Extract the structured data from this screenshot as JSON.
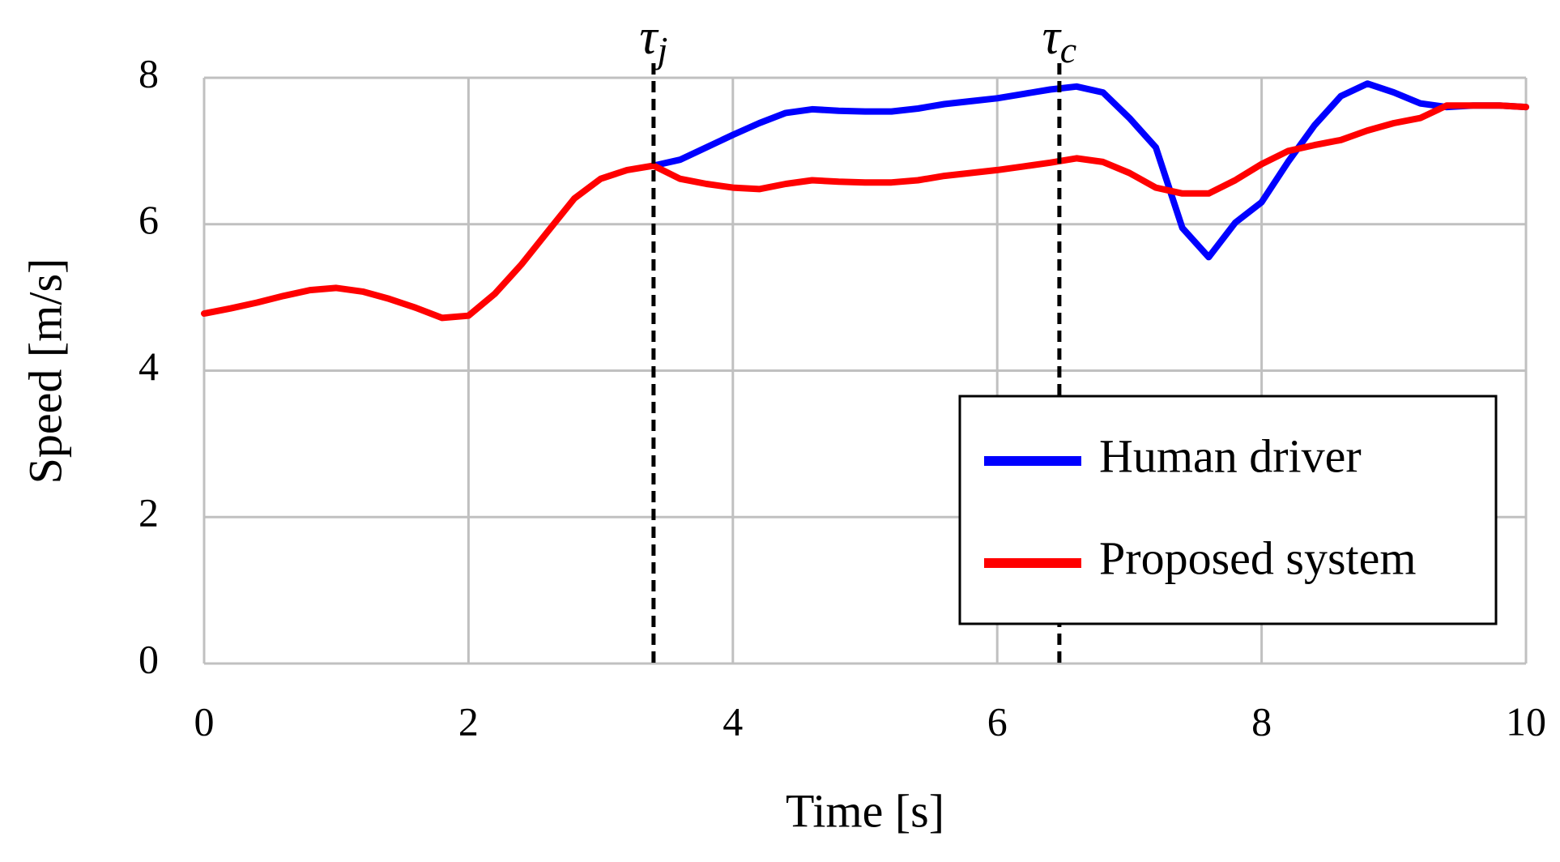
{
  "chart_data": {
    "type": "line",
    "x_label": "Time [s]",
    "y_label": "Speed [m/s]",
    "x": [
      0,
      0.2,
      0.4,
      0.6,
      0.8,
      1.0,
      1.2,
      1.4,
      1.6,
      1.8,
      2.0,
      2.2,
      2.4,
      2.6,
      2.8,
      3.0,
      3.2,
      3.4,
      3.6,
      3.8,
      4.0,
      4.2,
      4.4,
      4.6,
      4.8,
      5.0,
      5.2,
      5.4,
      5.6,
      5.8,
      6.0,
      6.2,
      6.4,
      6.6,
      6.8,
      7.0,
      7.2,
      7.4,
      7.6,
      7.8,
      8.0,
      8.2,
      8.4,
      8.6,
      8.8,
      9.0,
      9.2,
      9.4,
      9.6,
      9.8,
      10
    ],
    "series": [
      {
        "name": "Human driver",
        "color": "#0000ff",
        "values": [
          null,
          null,
          null,
          null,
          null,
          null,
          null,
          null,
          null,
          null,
          null,
          null,
          null,
          null,
          null,
          null,
          null,
          6.8,
          6.88,
          7.05,
          7.22,
          7.38,
          7.52,
          7.57,
          7.55,
          7.54,
          7.54,
          7.58,
          7.64,
          7.68,
          7.72,
          7.78,
          7.84,
          7.88,
          7.8,
          7.45,
          7.05,
          5.95,
          5.55,
          6.02,
          6.3,
          6.85,
          7.35,
          7.75,
          7.92,
          7.8,
          7.65,
          7.6,
          7.62,
          7.62,
          7.6
        ]
      },
      {
        "name": "Proposed system",
        "color": "#ff0000",
        "values": [
          4.78,
          4.85,
          4.93,
          5.02,
          5.1,
          5.13,
          5.08,
          4.98,
          4.86,
          4.72,
          4.75,
          5.05,
          5.45,
          5.9,
          6.35,
          6.62,
          6.74,
          6.8,
          6.62,
          6.55,
          6.5,
          6.48,
          6.55,
          6.6,
          6.58,
          6.57,
          6.57,
          6.6,
          6.66,
          6.7,
          6.74,
          6.79,
          6.84,
          6.9,
          6.85,
          6.7,
          6.5,
          6.42,
          6.42,
          6.6,
          6.82,
          7.0,
          7.08,
          7.15,
          7.28,
          7.38,
          7.45,
          7.62,
          7.62,
          7.62,
          7.6
        ]
      }
    ],
    "annotations": [
      {
        "x": 3.4,
        "symbol": "τ",
        "subscript": "j"
      },
      {
        "x": 6.47,
        "symbol": "τ",
        "subscript": "c"
      }
    ],
    "xlim": [
      0,
      10
    ],
    "xticks": [
      0,
      2,
      4,
      6,
      8,
      10
    ],
    "ylim": [
      0,
      8
    ],
    "yticks": [
      0,
      2,
      4,
      6,
      8
    ],
    "grid": true,
    "legend": "lower right"
  }
}
